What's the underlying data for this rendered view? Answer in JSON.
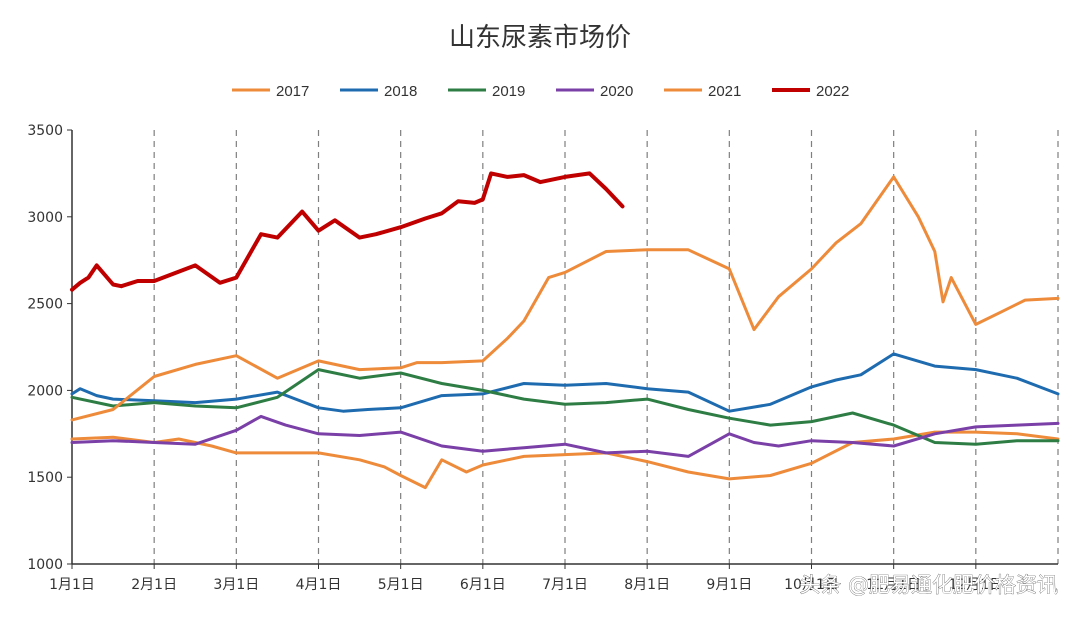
{
  "chart_data": {
    "type": "line",
    "title": "山东尿素市场价",
    "xlabel": "",
    "ylabel": "",
    "ylim": [
      1000,
      3500
    ],
    "y_ticks": [
      "1000",
      "1500",
      "2000",
      "2500",
      "3000",
      "3500"
    ],
    "x_ticks": [
      "1月1日",
      "2月1日",
      "3月1日",
      "4月1日",
      "5月1日",
      "6月1日",
      "7月1日",
      "8月1日",
      "9月1日",
      "10月1日",
      "11月1日",
      "12月1日"
    ],
    "grid": "vertical dashed lines at each month",
    "legend_position": "top-center",
    "series": [
      {
        "name": "2017",
        "color": "#ED8B3B",
        "x": [
          0,
          0.5,
          1,
          1.3,
          1.7,
          2,
          2.5,
          3,
          3.5,
          3.8,
          4,
          4.3,
          4.5,
          4.8,
          5,
          5.5,
          6,
          6.5,
          7,
          7.5,
          8,
          8.5,
          9,
          9.5,
          10,
          10.5,
          11,
          11.5,
          12
        ],
        "values": [
          1720,
          1730,
          1700,
          1720,
          1680,
          1640,
          1640,
          1640,
          1600,
          1560,
          1510,
          1440,
          1600,
          1530,
          1570,
          1620,
          1630,
          1640,
          1590,
          1530,
          1490,
          1510,
          1580,
          1700,
          1720,
          1760,
          1760,
          1750,
          1720
        ]
      },
      {
        "name": "2018",
        "color": "#1F6BB0",
        "x": [
          0,
          0.1,
          0.3,
          0.5,
          1,
          1.5,
          2,
          2.5,
          3,
          3.3,
          3.6,
          4,
          4.5,
          5,
          5.5,
          6,
          6.5,
          7,
          7.5,
          8,
          8.5,
          9,
          9.3,
          9.6,
          10,
          10.5,
          11,
          11.5,
          12
        ],
        "values": [
          1980,
          2010,
          1970,
          1950,
          1940,
          1930,
          1950,
          1990,
          1900,
          1880,
          1890,
          1900,
          1970,
          1980,
          2040,
          2030,
          2040,
          2010,
          1990,
          1880,
          1920,
          2020,
          2060,
          2090,
          2210,
          2140,
          2120,
          2070,
          1980
        ]
      },
      {
        "name": "2019",
        "color": "#2E7D45",
        "x": [
          0,
          0.5,
          1,
          1.5,
          2,
          2.5,
          3,
          3.5,
          4,
          4.5,
          5,
          5.5,
          6,
          6.5,
          7,
          7.5,
          8,
          8.5,
          9,
          9.5,
          10,
          10.5,
          11,
          11.5,
          12
        ],
        "values": [
          1960,
          1910,
          1930,
          1910,
          1900,
          1960,
          2120,
          2070,
          2100,
          2040,
          2000,
          1950,
          1920,
          1930,
          1950,
          1890,
          1840,
          1800,
          1820,
          1870,
          1800,
          1700,
          1690,
          1710,
          1710
        ]
      },
      {
        "name": "2020",
        "color": "#7B3FA8",
        "x": [
          0,
          0.5,
          1,
          1.5,
          2,
          2.3,
          2.6,
          3,
          3.5,
          4,
          4.5,
          5,
          5.5,
          6,
          6.5,
          7,
          7.5,
          8,
          8.3,
          8.6,
          9,
          9.5,
          10,
          10.5,
          11,
          11.5,
          12
        ],
        "values": [
          1700,
          1710,
          1700,
          1690,
          1770,
          1850,
          1800,
          1750,
          1740,
          1760,
          1680,
          1650,
          1670,
          1690,
          1640,
          1650,
          1620,
          1750,
          1700,
          1680,
          1710,
          1700,
          1680,
          1750,
          1790,
          1800,
          1810
        ]
      },
      {
        "name": "2021",
        "color": "#ED8B3B",
        "x": [
          0,
          0.5,
          1,
          1.5,
          2,
          2.5,
          3,
          3.5,
          4,
          4.2,
          4.5,
          5,
          5.3,
          5.5,
          5.8,
          6,
          6.5,
          7,
          7.5,
          8,
          8.3,
          8.6,
          9,
          9.3,
          9.6,
          10,
          10.3,
          10.5,
          10.6,
          10.7,
          11,
          11.3,
          11.6,
          12
        ],
        "values": [
          1830,
          1890,
          2080,
          2150,
          2200,
          2070,
          2170,
          2120,
          2130,
          2160,
          2160,
          2170,
          2300,
          2400,
          2650,
          2680,
          2800,
          2810,
          2810,
          2700,
          2350,
          2540,
          2700,
          2850,
          2960,
          3230,
          3000,
          2800,
          2510,
          2650,
          2380,
          2450,
          2520,
          2530
        ]
      },
      {
        "name": "2022",
        "color": "#C00000",
        "x": [
          0,
          0.1,
          0.2,
          0.3,
          0.5,
          0.6,
          0.8,
          1,
          1.5,
          1.8,
          2,
          2.3,
          2.5,
          2.8,
          3,
          3.2,
          3.5,
          3.7,
          4,
          4.3,
          4.5,
          4.7,
          4.9,
          5,
          5.1,
          5.3,
          5.5,
          5.7,
          6,
          6.3,
          6.5,
          6.7
        ],
        "values": [
          2580,
          2620,
          2650,
          2720,
          2610,
          2600,
          2630,
          2630,
          2720,
          2620,
          2650,
          2900,
          2880,
          3030,
          2920,
          2980,
          2880,
          2900,
          2940,
          2990,
          3020,
          3090,
          3080,
          3100,
          3250,
          3230,
          3240,
          3200,
          3230,
          3250,
          3160,
          3060
        ]
      }
    ]
  },
  "watermark": "头条 @肥易通化肥价格资讯"
}
